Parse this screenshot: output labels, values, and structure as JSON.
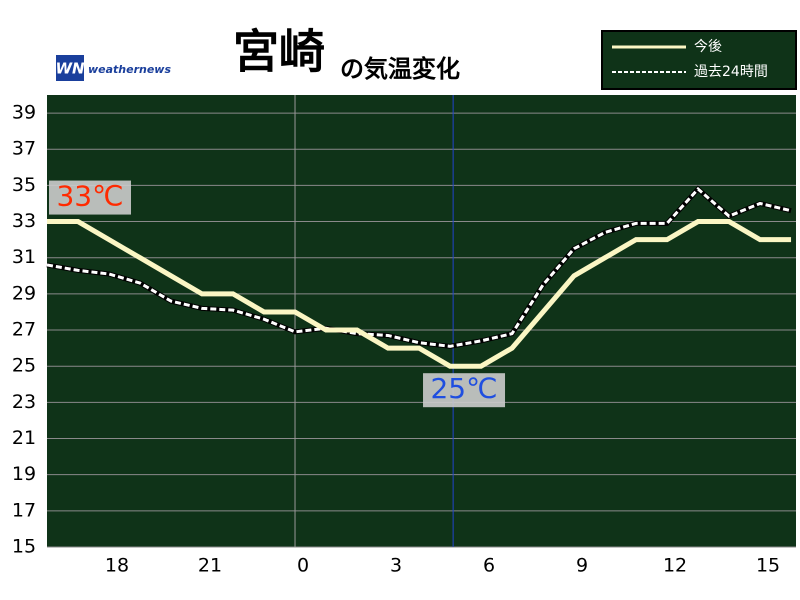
{
  "chart_data": {
    "type": "line",
    "title": "宮崎",
    "subtitle": "の気温変化",
    "brand": "weathernews",
    "brand_mark": "WN",
    "x": [
      16,
      17,
      18,
      19,
      20,
      21,
      22,
      23,
      24,
      25,
      26,
      27,
      28,
      29,
      30,
      31,
      32,
      33,
      34,
      35,
      36,
      37,
      38,
      39,
      40
    ],
    "series": [
      {
        "name": "今後",
        "color": "#fbf6c4",
        "dash": false,
        "values": [
          33,
          33,
          32,
          31,
          30,
          29,
          29,
          28,
          28,
          27,
          27,
          26,
          26,
          25,
          25,
          26,
          28,
          30,
          31,
          32,
          32,
          33,
          33,
          32,
          32
        ]
      },
      {
        "name": "過去24時間",
        "color": "#ffffff",
        "dash": true,
        "values": [
          30.6,
          30.3,
          30.1,
          29.6,
          28.6,
          28.2,
          28.1,
          27.6,
          26.9,
          27.1,
          26.8,
          26.7,
          26.3,
          26.1,
          26.4,
          26.8,
          29.5,
          31.5,
          32.4,
          32.9,
          32.9,
          34.8,
          33.3,
          34.0,
          33.6
        ]
      }
    ],
    "annotations": [
      {
        "text": "33℃",
        "color": "#ff2a00"
      },
      {
        "text": "25℃",
        "color": "#1f4fe0"
      }
    ],
    "xlim": [
      16,
      40.16
    ],
    "xticks": [
      {
        "value": 18,
        "label": "18"
      },
      {
        "value": 21,
        "label": "21"
      },
      {
        "value": 24,
        "label": "0"
      },
      {
        "value": 27,
        "label": "3"
      },
      {
        "value": 30,
        "label": "6"
      },
      {
        "value": 33,
        "label": "9"
      },
      {
        "value": 36,
        "label": "12"
      },
      {
        "value": 39,
        "label": "15"
      }
    ],
    "now_x": 29.1,
    "ylim": [
      15,
      40
    ],
    "yticks": [
      15,
      17,
      19,
      21,
      23,
      25,
      27,
      29,
      31,
      33,
      35,
      37,
      39
    ],
    "grid": true,
    "background": "#0f3318"
  }
}
